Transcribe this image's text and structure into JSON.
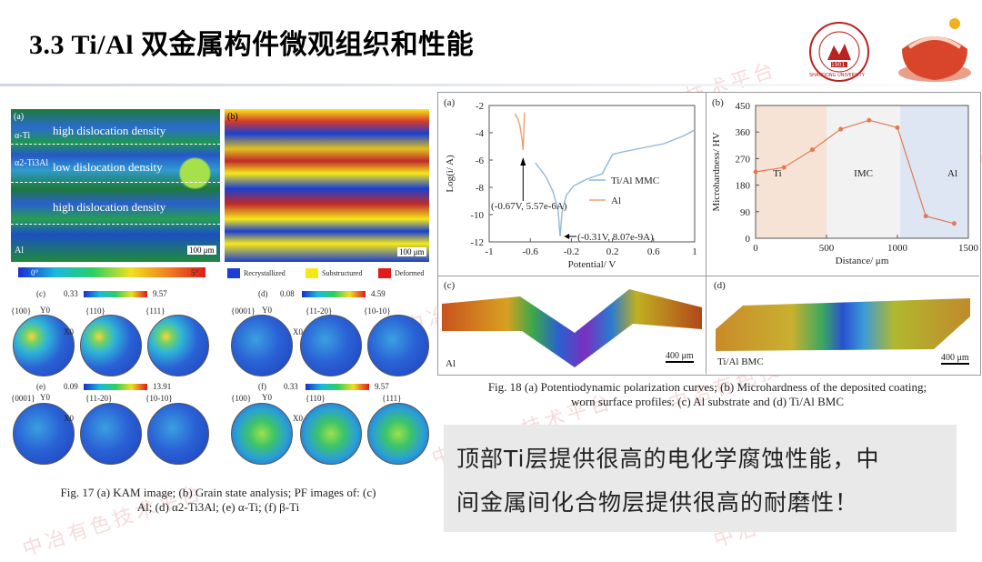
{
  "slide": {
    "title": "3.3 Ti/Al 双金属构件微观组织和性能",
    "watermark": "中冶有色技术平台"
  },
  "logo": {
    "name": "SHANDONG UNIVERSITY",
    "year": "1901"
  },
  "fig17": {
    "panel_a": {
      "label": "(a)",
      "texts": [
        "high dislocation density",
        "low dislocation density",
        "high dislocation density"
      ],
      "phase_labels": [
        "α-Ti",
        "α2-Ti3Al",
        "Al"
      ],
      "scale": "100 μm",
      "colorbar_min": "0°",
      "colorbar_max": "5°"
    },
    "panel_b": {
      "label": "(b)",
      "scale": "100 μm",
      "legend": [
        {
          "name": "Recrystallized",
          "color": "#1a3fd1"
        },
        {
          "name": "Substructured",
          "color": "#f5e81a"
        },
        {
          "name": "Deformed",
          "color": "#e01b1b"
        }
      ]
    },
    "panel_c": {
      "label": "(c)",
      "min": "0.33",
      "max": "9.57",
      "poles": [
        "{100}",
        "{110}",
        "{111}"
      ]
    },
    "panel_d": {
      "label": "(d)",
      "min": "0.08",
      "max": "4.59",
      "poles": [
        "{0001}",
        "{11-20}",
        "{10-10}"
      ]
    },
    "panel_e": {
      "label": "(e)",
      "min": "0.09",
      "max": "13.91",
      "poles": [
        "{0001}",
        "{11-20}",
        "{10-10}"
      ]
    },
    "panel_f": {
      "label": "(f)",
      "min": "0.33",
      "max": "9.57",
      "poles": [
        "{100}",
        "{110}",
        "{111}"
      ]
    },
    "axis_y": "Y0",
    "axis_x": "X0",
    "caption_line1": "Fig. 17 (a) KAM image; (b) Grain state analysis; PF images of: (c)",
    "caption_line2": "Al; (d) α2-Ti3Al; (e) α-Ti; (f) β-Ti"
  },
  "fig18": {
    "panel_a": {
      "label": "(a)",
      "xlabel": "Potential/ V",
      "ylabel": "Log(i/ A)",
      "annot1": "(-0.67V, 5.57e-6A)",
      "annot2": "(-0.31V, 8.07e-9A)"
    },
    "panel_b": {
      "label": "(b)",
      "xlabel": "Distance/ μm",
      "ylabel": "Microhardness/ HV",
      "region_labels": [
        "Ti",
        "IMC",
        "Al"
      ]
    },
    "panel_c": {
      "label": "(c)",
      "sublabel": "Al",
      "scale": "400 μm"
    },
    "panel_d": {
      "label": "(d)",
      "sublabel": "Ti/Al BMC",
      "scale": "400 μm"
    },
    "caption_line1": "Fig. 18 (a) Potentiodynamic polarization curves; (b) Microhardness of the deposited coating;",
    "caption_line2": "worn surface profiles: (c) Al substrate and (d) Ti/Al BMC"
  },
  "callout": {
    "line1": "顶部Ti层提供很高的电化学腐蚀性能，中",
    "line2": "间金属间化合物层提供很高的耐磨性！"
  },
  "chart_data": [
    {
      "type": "line",
      "title": "",
      "xlabel": "Potential/ V",
      "ylabel": "Log(i/ A)",
      "xlim": [
        -1,
        1
      ],
      "ylim": [
        -12,
        -2
      ],
      "xticks": [
        -1,
        -0.6,
        -0.2,
        0.2,
        0.6,
        1
      ],
      "yticks": [
        -2,
        -4,
        -6,
        -8,
        -10,
        -12
      ],
      "legend_position": "right",
      "series": [
        {
          "name": "Ti/Al MMC",
          "color": "#8fb8dc",
          "x": [
            -0.55,
            -0.45,
            -0.38,
            -0.33,
            -0.31,
            -0.29,
            -0.25,
            -0.18,
            -0.05,
            0.1,
            0.2,
            0.3,
            0.5,
            0.7,
            0.9,
            1.0
          ],
          "y": [
            -6.2,
            -7.2,
            -8.3,
            -9.6,
            -11.6,
            -9.8,
            -8.6,
            -7.9,
            -7.4,
            -7.0,
            -5.6,
            -5.4,
            -5.1,
            -4.8,
            -4.2,
            -3.8
          ]
        },
        {
          "name": "Al",
          "color": "#e8a070",
          "x": [
            -0.75,
            -0.72,
            -0.7,
            -0.68,
            -0.67,
            -0.665,
            -0.66,
            -0.655
          ],
          "y": [
            -2.6,
            -3.0,
            -3.5,
            -4.5,
            -5.25,
            -4.3,
            -3.3,
            -2.5
          ]
        }
      ]
    },
    {
      "type": "line",
      "title": "",
      "xlabel": "Distance/ μm",
      "ylabel": "Microhardness/ HV",
      "xlim": [
        0,
        1500
      ],
      "ylim": [
        0,
        450
      ],
      "xticks": [
        0,
        500,
        1000,
        1500
      ],
      "yticks": [
        0,
        90,
        180,
        270,
        360,
        450
      ],
      "regions": [
        {
          "name": "Ti",
          "from": 0,
          "to": 500,
          "color": "#f7e3d6"
        },
        {
          "name": "IMC",
          "from": 500,
          "to": 1020,
          "color": "#f2f2f2"
        },
        {
          "name": "Al",
          "from": 1020,
          "to": 1500,
          "color": "#dde6f2"
        }
      ],
      "series": [
        {
          "name": "",
          "color": "#e07b54",
          "x": [
            0,
            200,
            400,
            600,
            800,
            1000,
            1200,
            1400
          ],
          "y": [
            225,
            240,
            300,
            370,
            400,
            375,
            75,
            50
          ]
        }
      ]
    }
  ]
}
